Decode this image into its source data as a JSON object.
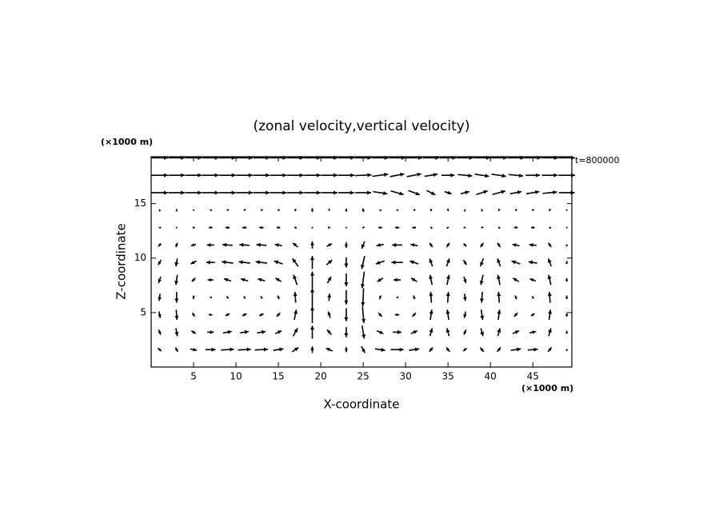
{
  "chart_data": {
    "type": "quiver",
    "title": "(zonal velocity,vertical velocity)",
    "xlabel": "X-coordinate",
    "ylabel": "Z-coordinate",
    "xunit": "(×1000 m)",
    "yunit": "(×1000 m)",
    "annotation": "t=800000",
    "color": "#000000",
    "xlim": [
      0,
      49.6
    ],
    "ylim": [
      0,
      19.3
    ],
    "xticks": [
      5,
      10,
      15,
      20,
      25,
      30,
      35,
      40,
      45
    ],
    "yticks": [
      5,
      10,
      15
    ],
    "x": [
      1,
      3,
      5,
      7,
      9,
      11,
      13,
      15,
      17,
      19,
      21,
      23,
      25,
      27,
      29,
      31,
      33,
      35,
      37,
      39,
      41,
      43,
      45,
      47,
      49
    ],
    "z": [
      1.6,
      3.2,
      4.8,
      6.4,
      8.0,
      9.6,
      11.2,
      12.8,
      14.4,
      16.0,
      17.6,
      19.2
    ],
    "u": [
      [
        0.5,
        0.3,
        0.9,
        1.4,
        1.8,
        1.8,
        1.8,
        1.4,
        0.9,
        0,
        -0.9,
        0,
        0.5,
        1.4,
        1.8,
        1.4,
        0.5,
        -0.5,
        -0.5,
        0.5,
        0.5,
        1.4,
        1.4,
        0.5,
        0
      ],
      [
        0.3,
        0.2,
        0.6,
        0.9,
        1.2,
        1.2,
        1.2,
        0.9,
        0.6,
        0,
        -0.6,
        0,
        0.3,
        0.9,
        1.2,
        0.9,
        0.3,
        -0.3,
        -0.3,
        0.3,
        0.3,
        0.9,
        0.9,
        0.3,
        0
      ],
      [
        0.2,
        0.1,
        0.3,
        0.5,
        0.6,
        0.6,
        0.6,
        0.5,
        0.3,
        0,
        -0.3,
        0,
        0.2,
        0.5,
        0.6,
        0.5,
        0.2,
        -0.2,
        -0.2,
        0.2,
        0.2,
        0.5,
        0.5,
        0.2,
        0
      ],
      [
        -0.1,
        0,
        -0.1,
        -0.2,
        -0.2,
        -0.2,
        -0.2,
        -0.2,
        -0.1,
        0,
        0.1,
        0,
        -0.1,
        -0.2,
        -0.2,
        -0.2,
        -0.1,
        0.1,
        0.1,
        -0.1,
        -0.1,
        -0.2,
        -0.2,
        -0.1,
        0
      ],
      [
        -0.3,
        -0.2,
        -0.5,
        -0.8,
        -1,
        -1,
        -1,
        -0.8,
        -0.5,
        0,
        0.5,
        0,
        -0.3,
        -0.8,
        -1,
        -0.8,
        -0.3,
        0.3,
        0.3,
        -0.3,
        -0.3,
        -0.8,
        -0.8,
        -0.3,
        0
      ],
      [
        -0.4,
        -0.2,
        -0.8,
        -1.2,
        -1.6,
        -1.6,
        -1.6,
        -1.2,
        -0.8,
        0,
        0.8,
        0,
        -0.4,
        -1.2,
        -1.6,
        -1.2,
        -0.4,
        0.4,
        0.4,
        -0.4,
        -0.4,
        -1.2,
        -1.2,
        -0.4,
        0
      ],
      [
        -0.4,
        -0.2,
        -0.7,
        -1,
        -1.4,
        -1.4,
        -1.4,
        -1,
        -0.7,
        0,
        0.7,
        0,
        -0.4,
        -1,
        -1.4,
        -1,
        -0.4,
        0.4,
        0.4,
        -0.4,
        -0.4,
        -1,
        -1,
        -0.4,
        0
      ],
      [
        -0.2,
        -0.1,
        -0.3,
        -0.5,
        -0.6,
        -0.6,
        -0.6,
        -0.5,
        -0.3,
        0,
        0.3,
        0,
        -0.2,
        -0.5,
        -0.6,
        -0.5,
        -0.2,
        0.2,
        0.2,
        -0.2,
        -0.2,
        -0.5,
        -0.5,
        -0.2,
        0
      ],
      [
        -0.1,
        0,
        -0.1,
        -0.2,
        -0.2,
        -0.2,
        -0.2,
        -0.2,
        -0.1,
        0,
        0.1,
        0,
        -0.1,
        -0.2,
        -0.2,
        -0.2,
        -0.1,
        0.1,
        0.1,
        -0.1,
        -0.1,
        -0.2,
        -0.2,
        -0.1,
        0
      ],
      [
        2.3,
        2.3,
        2.3,
        2.3,
        2.3,
        2.3,
        2.3,
        2.3,
        2.3,
        2.3,
        2.3,
        2.2,
        2.2,
        2.0,
        1.8,
        1.6,
        1.2,
        1.0,
        1.2,
        1.6,
        1.8,
        1.6,
        1.8,
        2.0,
        2.2
      ],
      [
        2.3,
        2.3,
        2.3,
        2.3,
        2.3,
        2.3,
        2.3,
        2.3,
        2.3,
        2.3,
        2.3,
        2.3,
        2.3,
        2.2,
        2.0,
        2.0,
        1.8,
        1.8,
        2.0,
        2.0,
        2.0,
        2.0,
        2.0,
        2.2,
        2.3
      ],
      [
        2.3,
        2.3,
        2.3,
        2.3,
        2.3,
        2.3,
        2.3,
        2.3,
        2.3,
        2.3,
        2.3,
        2.3,
        2.3,
        2.3,
        2.3,
        2.3,
        2.3,
        2.3,
        2.3,
        2.3,
        2.3,
        2.3,
        2.3,
        2.3,
        2.3
      ]
    ],
    "w": [
      [
        -0.4,
        -0.6,
        -0.2,
        0,
        0.1,
        0.1,
        0.1,
        0.2,
        0.6,
        0.9,
        0.4,
        -0.7,
        -0.9,
        -0.2,
        0,
        0.2,
        0.6,
        0.6,
        -0.4,
        -0.6,
        0.6,
        0.2,
        0.1,
        0.6,
        0.2
      ],
      [
        -0.7,
        -1.1,
        -0.4,
        0,
        0.2,
        0.2,
        0.2,
        0.4,
        1.1,
        1.8,
        0.7,
        -1.4,
        -1.8,
        -0.4,
        0,
        0.4,
        1.1,
        1.1,
        -0.7,
        -1.1,
        1.1,
        0.4,
        0.2,
        1.1,
        0.4
      ],
      [
        -0.9,
        -1.4,
        -0.5,
        0,
        0.3,
        0.3,
        0.3,
        0.5,
        1.4,
        2.3,
        0.9,
        -1.8,
        -2.3,
        -0.5,
        0,
        0.5,
        1.4,
        1.4,
        -0.9,
        -1.4,
        1.4,
        0.5,
        0.3,
        1.4,
        0.5
      ],
      [
        -1,
        -1.5,
        -0.5,
        0,
        0.3,
        0.3,
        0.3,
        0.5,
        1.5,
        2.5,
        1,
        -2,
        -2.5,
        -0.5,
        0,
        0.5,
        1.5,
        1.5,
        -1,
        -1.5,
        1.5,
        0.5,
        0.3,
        1.5,
        0.5
      ],
      [
        -0.9,
        -1.4,
        -0.5,
        0,
        0.3,
        0.3,
        0.3,
        0.5,
        1.4,
        2.3,
        0.9,
        -1.8,
        -2.3,
        -0.5,
        0,
        0.5,
        1.4,
        1.4,
        -0.9,
        -1.4,
        1.4,
        0.5,
        0.3,
        1.4,
        0.5
      ],
      [
        -0.7,
        -1.1,
        -0.4,
        0,
        0.2,
        0.2,
        0.2,
        0.4,
        1.1,
        1.8,
        0.7,
        -1.4,
        -1.8,
        -0.4,
        0,
        0.4,
        1.1,
        1.1,
        -0.7,
        -1.1,
        1.1,
        0.4,
        0.2,
        1.1,
        0.4
      ],
      [
        -0.4,
        -0.6,
        -0.2,
        0,
        0.1,
        0.1,
        0.1,
        0.2,
        0.6,
        1,
        0.4,
        -0.8,
        -1,
        -0.2,
        0,
        0.2,
        0.6,
        0.6,
        -0.4,
        -0.6,
        0.6,
        0.2,
        0.1,
        0.6,
        0.2
      ],
      [
        0,
        -0.1,
        0,
        0,
        0,
        0,
        0,
        0,
        0.1,
        0.1,
        0,
        -0.1,
        -0.1,
        0,
        0,
        0,
        0.1,
        0.1,
        0,
        -0.1,
        0.1,
        0,
        0,
        0.1,
        0
      ],
      [
        0.2,
        0.3,
        0.1,
        0,
        -0.1,
        -0.1,
        -0.1,
        -0.1,
        -0.3,
        -0.5,
        -0.2,
        0.4,
        0.5,
        0.1,
        0,
        -0.1,
        -0.3,
        -0.3,
        0.2,
        0.3,
        -0.3,
        -0.1,
        -0.1,
        -0.3,
        -0.1
      ],
      [
        0,
        0,
        0,
        0,
        0,
        0,
        0,
        0,
        0,
        0,
        0,
        0,
        0,
        -0.3,
        -0.5,
        -0.6,
        -0.6,
        -0.3,
        0.3,
        0.5,
        0.5,
        0.3,
        0.3,
        0.2,
        0
      ],
      [
        0,
        0,
        0,
        0,
        0,
        0,
        0,
        0,
        0,
        0,
        0,
        0,
        0.1,
        0.3,
        0.4,
        0.4,
        0.3,
        0,
        -0.2,
        -0.3,
        -0.3,
        -0.2,
        0,
        0,
        0
      ],
      [
        0,
        0,
        0,
        0,
        0,
        0,
        0,
        0,
        0,
        0,
        0,
        0,
        0,
        0,
        0,
        0,
        0,
        0,
        0,
        0,
        0,
        0,
        0,
        0,
        0
      ]
    ]
  }
}
